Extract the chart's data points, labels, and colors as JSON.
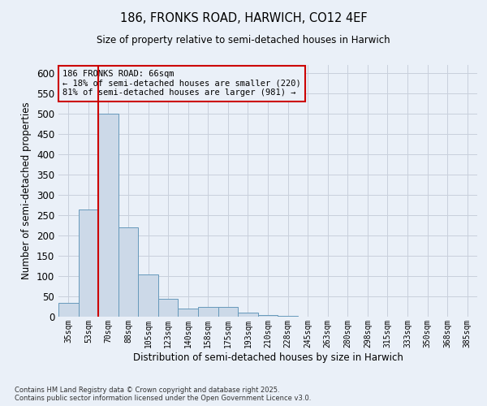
{
  "title_line1": "186, FRONKS ROAD, HARWICH, CO12 4EF",
  "title_line2": "Size of property relative to semi-detached houses in Harwich",
  "xlabel": "Distribution of semi-detached houses by size in Harwich",
  "ylabel": "Number of semi-detached properties",
  "categories": [
    "35sqm",
    "53sqm",
    "70sqm",
    "88sqm",
    "105sqm",
    "123sqm",
    "140sqm",
    "158sqm",
    "175sqm",
    "193sqm",
    "210sqm",
    "228sqm",
    "245sqm",
    "263sqm",
    "280sqm",
    "298sqm",
    "315sqm",
    "333sqm",
    "350sqm",
    "368sqm",
    "385sqm"
  ],
  "values": [
    35,
    265,
    500,
    220,
    105,
    45,
    20,
    25,
    25,
    10,
    5,
    2,
    1,
    0,
    0,
    0,
    0,
    0,
    1,
    0,
    1
  ],
  "bar_color": "#ccd9e8",
  "bar_edge_color": "#6699bb",
  "grid_color": "#c8d0dc",
  "bg_color": "#eaf0f8",
  "annotation_box_color": "#cc0000",
  "annotation_text_line1": "186 FRONKS ROAD: 66sqm",
  "annotation_text_line2": "← 18% of semi-detached houses are smaller (220)",
  "annotation_text_line3": "81% of semi-detached houses are larger (981) →",
  "footnote_line1": "Contains HM Land Registry data © Crown copyright and database right 2025.",
  "footnote_line2": "Contains public sector information licensed under the Open Government Licence v3.0.",
  "ylim": [
    0,
    620
  ],
  "yticks": [
    0,
    50,
    100,
    150,
    200,
    250,
    300,
    350,
    400,
    450,
    500,
    550,
    600
  ]
}
